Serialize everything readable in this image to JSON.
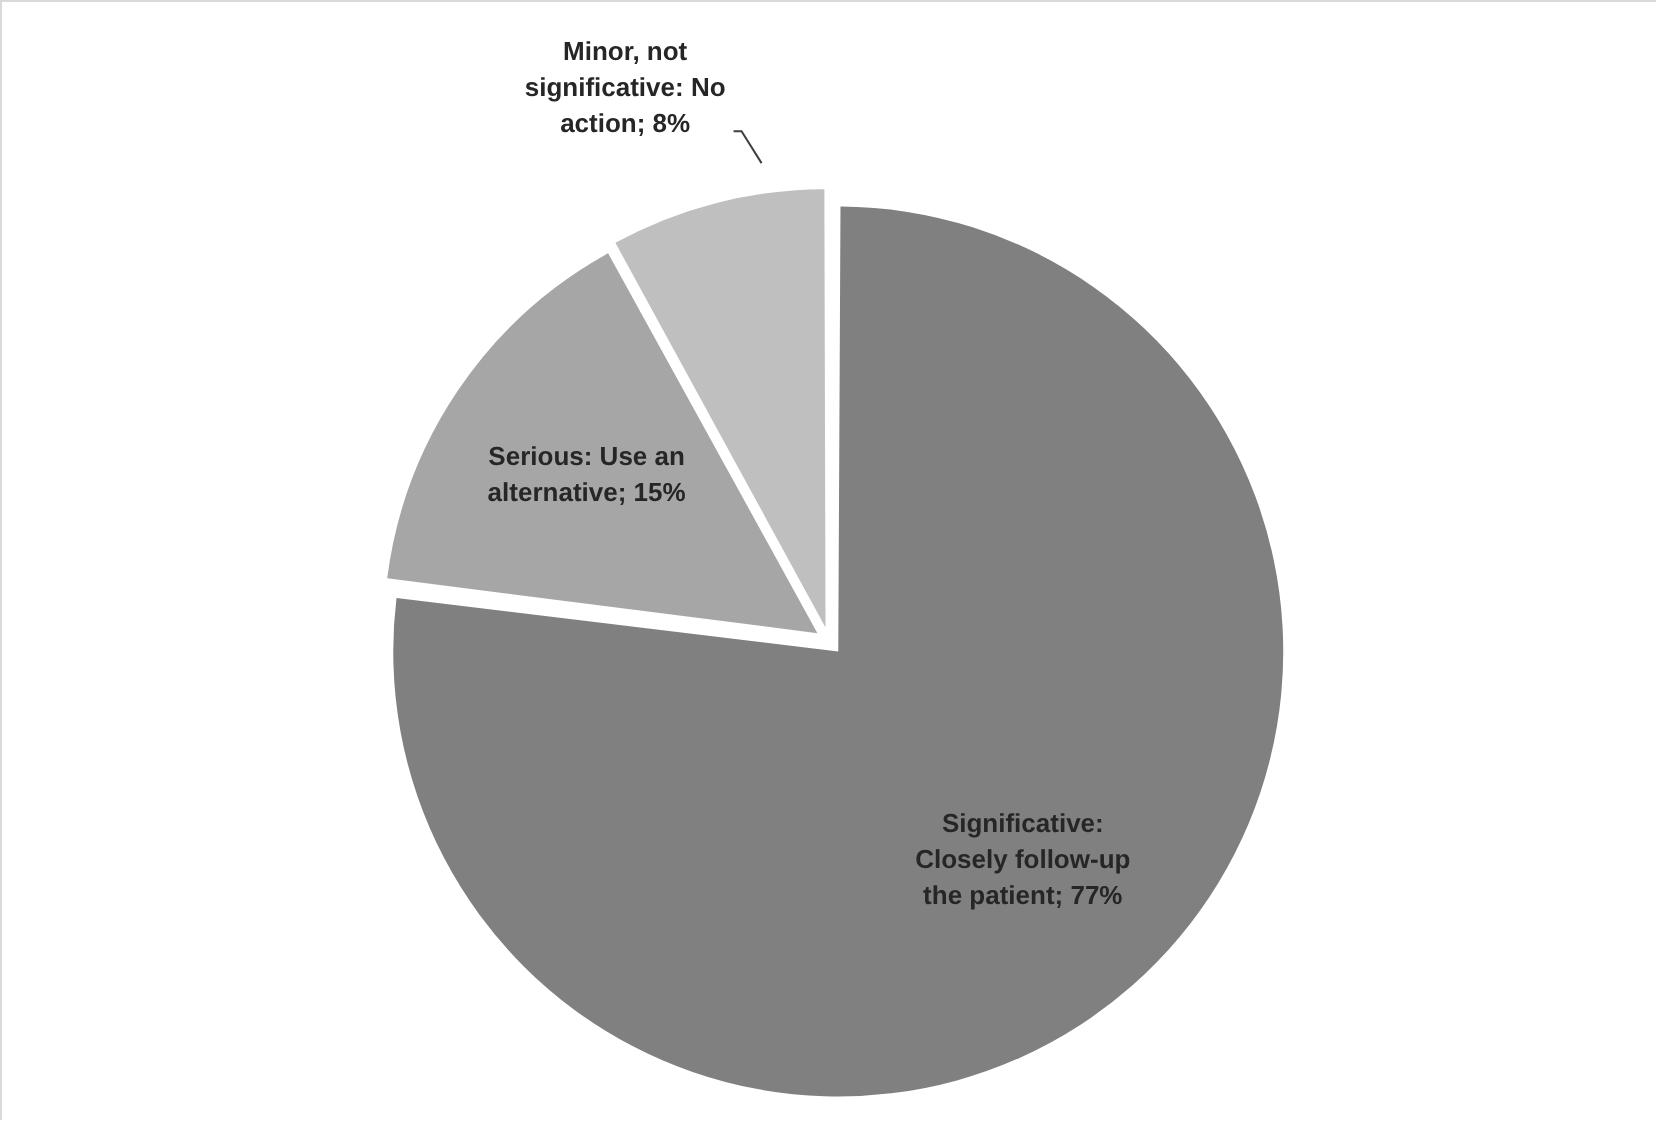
{
  "chart_data": {
    "type": "pie",
    "categories": [
      "Significative: Closely follow-up the patient",
      "Serious: Use an alternative",
      "Minor, not significative: No action"
    ],
    "values": [
      77,
      15,
      8
    ],
    "value_labels": [
      "77%",
      "15%",
      "8%"
    ],
    "colors": [
      "#808080",
      "#a6a6a6",
      "#bfbfbf"
    ],
    "legend": false
  }
}
